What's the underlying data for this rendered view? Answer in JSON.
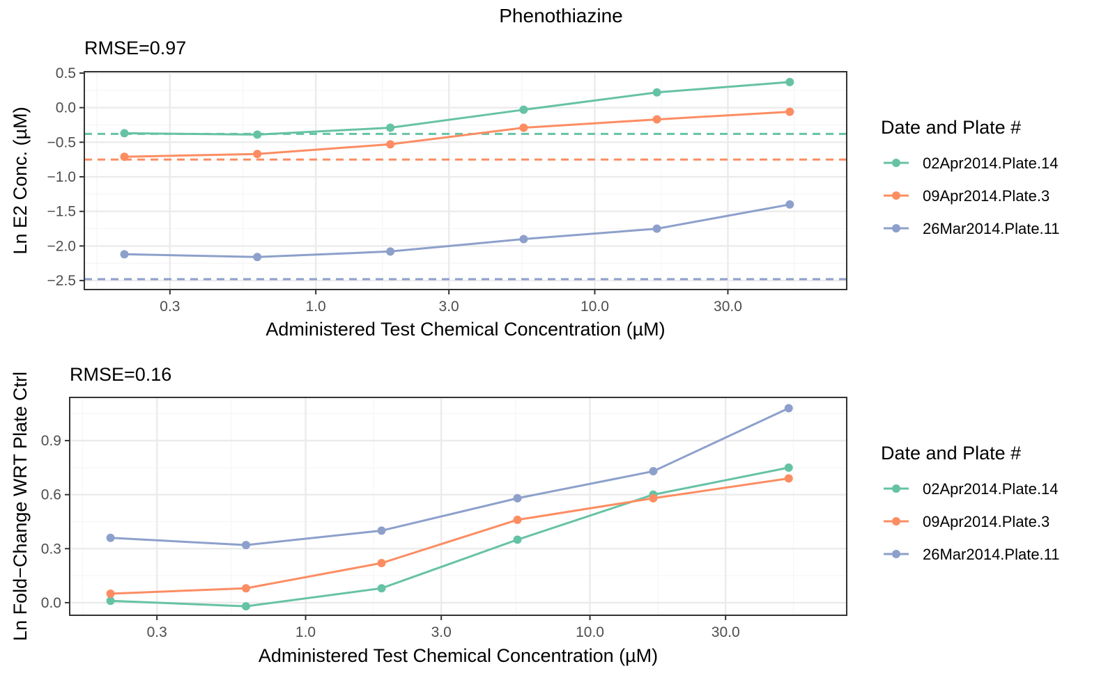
{
  "title": "Phenothiazine",
  "colors": {
    "02Apr2014.Plate.14": "#66c2a5",
    "09Apr2014.Plate.3": "#fc8d62",
    "26Mar2014.Plate.11": "#8da0cb",
    "panel_border": "#333333",
    "grid_major": "#ebebeb",
    "grid_minor": "#f5f5f5",
    "tick_text": "#4d4d4d",
    "text": "#000000"
  },
  "chart_data": [
    {
      "type": "line",
      "annotation": "RMSE=0.97",
      "xlabel": "Administered Test Chemical Concentration (µM)",
      "ylabel": "Ln E2 Conc. (µM)",
      "x_scale": "log",
      "x_ticks": [
        0.3,
        1.0,
        3.0,
        10.0,
        30.0
      ],
      "x_tick_labels": [
        "0.3",
        "1.0",
        "3.0",
        "10.0",
        "30.0"
      ],
      "y_ticks": [
        0.5,
        0.0,
        -0.5,
        -1.0,
        -1.5,
        -2.0,
        -2.5
      ],
      "y_tick_labels": [
        "0.5",
        "0.0",
        "−0.5",
        "−1.0",
        "−1.5",
        "−2.0",
        "−2.5"
      ],
      "xlim": [
        0.148,
        80.0
      ],
      "ylim": [
        -2.63,
        0.52
      ],
      "legend_title": "Date and Plate #",
      "legend_position": "right",
      "grid": true,
      "x": [
        0.206,
        0.617,
        1.85,
        5.56,
        16.7,
        50.0
      ],
      "series": [
        {
          "name": "02Apr2014.Plate.14",
          "values": [
            -0.37,
            -0.39,
            -0.29,
            -0.03,
            0.22,
            0.37
          ],
          "reference_line": -0.38
        },
        {
          "name": "09Apr2014.Plate.3",
          "values": [
            -0.71,
            -0.67,
            -0.53,
            -0.29,
            -0.17,
            -0.06
          ],
          "reference_line": -0.75
        },
        {
          "name": "26Mar2014.Plate.11",
          "values": [
            -2.12,
            -2.16,
            -2.08,
            -1.9,
            -1.75,
            -1.4
          ],
          "reference_line": -2.48
        }
      ]
    },
    {
      "type": "line",
      "annotation": "RMSE=0.16",
      "xlabel": "Administered Test Chemical Concentration (µM)",
      "ylabel": "Ln Fold−Change WRT Plate Ctrl",
      "x_scale": "log",
      "x_ticks": [
        0.3,
        1.0,
        3.0,
        10.0,
        30.0
      ],
      "x_tick_labels": [
        "0.3",
        "1.0",
        "3.0",
        "10.0",
        "30.0"
      ],
      "y_ticks": [
        0.9,
        0.6,
        0.3,
        0.0
      ],
      "y_tick_labels": [
        "0.9",
        "0.6",
        "0.3",
        "0.0"
      ],
      "xlim": [
        0.148,
        80.0
      ],
      "ylim": [
        -0.07,
        1.14
      ],
      "legend_title": "Date and Plate #",
      "legend_position": "right",
      "grid": true,
      "x": [
        0.206,
        0.617,
        1.85,
        5.56,
        16.7,
        50.0
      ],
      "series": [
        {
          "name": "02Apr2014.Plate.14",
          "values": [
            0.01,
            -0.02,
            0.08,
            0.35,
            0.6,
            0.75
          ]
        },
        {
          "name": "09Apr2014.Plate.3",
          "values": [
            0.05,
            0.08,
            0.22,
            0.46,
            0.58,
            0.69
          ]
        },
        {
          "name": "26Mar2014.Plate.11",
          "values": [
            0.36,
            0.32,
            0.4,
            0.58,
            0.73,
            1.08
          ]
        }
      ]
    }
  ]
}
